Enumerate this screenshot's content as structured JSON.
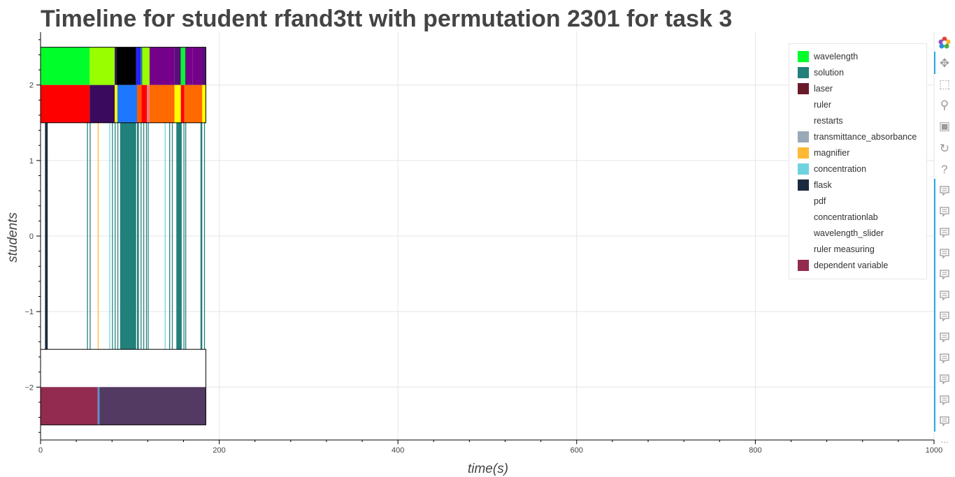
{
  "title": "Timeline for student rfand3tt with permutation 2301 for task 3",
  "chart_data": {
    "type": "bar",
    "title": "Timeline for student rfand3tt with permutation 2301 for task 3",
    "xlabel": "time(s)",
    "ylabel": "students",
    "xlim": [
      0,
      1000
    ],
    "ylim": [
      -2.7,
      2.7
    ],
    "x_ticks": [
      0,
      200,
      400,
      600,
      800,
      1000
    ],
    "x_tick_labels": [
      "0",
      "200",
      "400",
      "600",
      "800",
      "1000"
    ],
    "y_ticks": [
      2,
      1,
      0,
      -1,
      -2
    ],
    "y_tick_labels": [
      "2",
      "1",
      "0",
      "−1",
      "−2"
    ],
    "grid": true,
    "legend_position": "top-right",
    "legend": [
      {
        "name": "wavelength",
        "color": "#00ff2a"
      },
      {
        "name": "solution",
        "color": "#21807a"
      },
      {
        "name": "laser",
        "color": "#6b1a2a"
      },
      {
        "name": "ruler",
        "color": ""
      },
      {
        "name": "restarts",
        "color": ""
      },
      {
        "name": "transmittance_absorbance",
        "color": "#9aa8b8"
      },
      {
        "name": "magnifier",
        "color": "#ffb935"
      },
      {
        "name": "concentration",
        "color": "#6fd3df"
      },
      {
        "name": "flask",
        "color": "#1b2a3e"
      },
      {
        "name": "pdf",
        "color": ""
      },
      {
        "name": "concentrationlab",
        "color": ""
      },
      {
        "name": "wavelength_slider",
        "color": ""
      },
      {
        "name": "ruler measuring",
        "color": ""
      },
      {
        "name": "dependent variable",
        "color": "#922b4f"
      }
    ],
    "rows": [
      {
        "y_range": [
          2.0,
          2.5
        ],
        "segments": [
          {
            "start": 0,
            "end": 55,
            "color": "#00ff2a"
          },
          {
            "start": 55,
            "end": 83,
            "color": "#99ff00"
          },
          {
            "start": 83,
            "end": 85,
            "color": "#2d1060"
          },
          {
            "start": 85,
            "end": 107,
            "color": "#000000"
          },
          {
            "start": 107,
            "end": 112,
            "color": "#2222ff"
          },
          {
            "start": 112,
            "end": 114,
            "color": "#21807a"
          },
          {
            "start": 114,
            "end": 122,
            "color": "#99ff00"
          },
          {
            "start": 122,
            "end": 150,
            "color": "#75008a"
          },
          {
            "start": 150,
            "end": 157,
            "color": "#5a0e7a"
          },
          {
            "start": 157,
            "end": 162,
            "color": "#00ff2a"
          },
          {
            "start": 162,
            "end": 170,
            "color": "#75008a"
          },
          {
            "start": 170,
            "end": 180,
            "color": "#75008a"
          },
          {
            "start": 180,
            "end": 185,
            "color": "#5a0e7a"
          }
        ]
      },
      {
        "y_range": [
          1.5,
          2.0
        ],
        "segments": [
          {
            "start": 0,
            "end": 55,
            "color": "#ff0000"
          },
          {
            "start": 55,
            "end": 83,
            "color": "#3a0a5e"
          },
          {
            "start": 83,
            "end": 86,
            "color": "#ffff00"
          },
          {
            "start": 86,
            "end": 108,
            "color": "#1e78ff"
          },
          {
            "start": 108,
            "end": 113,
            "color": "#ff5a00"
          },
          {
            "start": 113,
            "end": 119,
            "color": "#ff0000"
          },
          {
            "start": 119,
            "end": 122,
            "color": "#f07a80"
          },
          {
            "start": 122,
            "end": 150,
            "color": "#ff6a00"
          },
          {
            "start": 150,
            "end": 157,
            "color": "#ffff00"
          },
          {
            "start": 157,
            "end": 161,
            "color": "#ff0000"
          },
          {
            "start": 161,
            "end": 181,
            "color": "#ff6a00"
          },
          {
            "start": 181,
            "end": 185,
            "color": "#ffff00"
          }
        ]
      },
      {
        "y_range": [
          -1.5,
          1.5
        ],
        "segments": [
          {
            "start": 5,
            "end": 8,
            "color": "#1b2a3e"
          },
          {
            "start": 52,
            "end": 53,
            "color": "#21807a"
          },
          {
            "start": 55,
            "end": 56,
            "color": "#21807a"
          },
          {
            "start": 64,
            "end": 65,
            "color": "#ffb935"
          },
          {
            "start": 77,
            "end": 78,
            "color": "#6fd3df"
          },
          {
            "start": 80,
            "end": 81,
            "color": "#21807a"
          },
          {
            "start": 83,
            "end": 84,
            "color": "#21807a"
          },
          {
            "start": 86,
            "end": 87,
            "color": "#21807a"
          },
          {
            "start": 89,
            "end": 107,
            "color": "#21807a"
          },
          {
            "start": 108,
            "end": 110,
            "color": "#21807a"
          },
          {
            "start": 112,
            "end": 113,
            "color": "#21807a"
          },
          {
            "start": 115,
            "end": 116,
            "color": "#21807a"
          },
          {
            "start": 118,
            "end": 119,
            "color": "#21807a"
          },
          {
            "start": 120,
            "end": 121,
            "color": "#21807a"
          },
          {
            "start": 139,
            "end": 140,
            "color": "#6fd3df"
          },
          {
            "start": 144,
            "end": 145,
            "color": "#21807a"
          },
          {
            "start": 147,
            "end": 148,
            "color": "#21807a"
          },
          {
            "start": 152,
            "end": 158,
            "color": "#21807a"
          },
          {
            "start": 160,
            "end": 161,
            "color": "#21807a"
          },
          {
            "start": 162,
            "end": 163,
            "color": "#21807a"
          },
          {
            "start": 179,
            "end": 181,
            "color": "#21807a"
          },
          {
            "start": 183,
            "end": 184,
            "color": "#21807a"
          }
        ]
      },
      {
        "y_range": [
          -2.5,
          -2.0
        ],
        "segments": [
          {
            "start": 0,
            "end": 64,
            "color": "#922b4f"
          },
          {
            "start": 64,
            "end": 66,
            "color": "#5b8fc9"
          },
          {
            "start": 66,
            "end": 185,
            "color": "#523a62"
          }
        ]
      }
    ],
    "frames": [
      {
        "x_range": [
          0,
          185
        ],
        "y_range": [
          1.5,
          2.5
        ]
      },
      {
        "x_range": [
          0,
          185
        ],
        "y_range": [
          -2.5,
          -1.5
        ]
      }
    ]
  },
  "toolbar": {
    "icons": [
      "bokeh-logo-icon",
      "pan-icon",
      "box-zoom-icon",
      "wheel-zoom-icon",
      "save-icon",
      "reset-icon",
      "help-icon",
      "hover-icon",
      "hover-icon",
      "hover-icon",
      "hover-icon",
      "hover-icon",
      "hover-icon",
      "hover-icon",
      "hover-icon",
      "hover-icon",
      "hover-icon",
      "hover-icon",
      "hover-icon",
      "more-icon"
    ],
    "more_label": "..."
  }
}
